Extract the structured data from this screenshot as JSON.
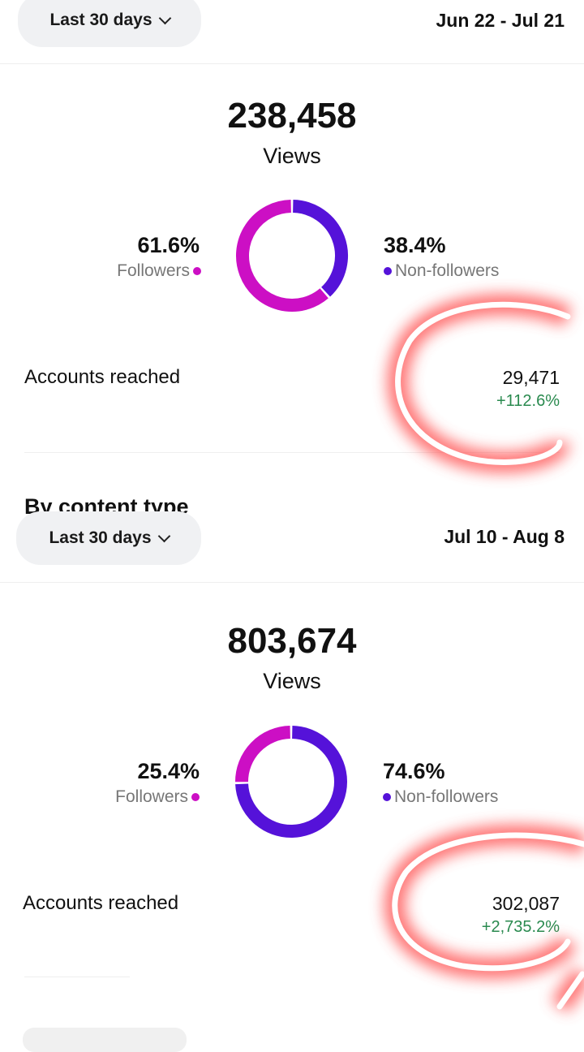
{
  "colors": {
    "followers": "#cc0fc4",
    "non_followers": "#5512d9",
    "positive": "#2a8a4f",
    "annotation": "#ff4d4d"
  },
  "section_title": "By content type",
  "panels": [
    {
      "range_label": "Last 30 days",
      "date_range": "Jun 22 - Jul 21",
      "views": "238,458",
      "views_label": "Views",
      "followers_pct": "61.6%",
      "followers_value": 61.6,
      "followers_label": "Followers",
      "non_followers_pct": "38.4%",
      "non_followers_value": 38.4,
      "non_followers_label": "Non-followers",
      "accounts_label": "Accounts reached",
      "accounts_value": "29,471",
      "accounts_change": "+112.6%"
    },
    {
      "range_label": "Last 30 days",
      "date_range": "Jul 10 - Aug 8",
      "views": "803,674",
      "views_label": "Views",
      "followers_pct": "25.4%",
      "followers_value": 25.4,
      "followers_label": "Followers",
      "non_followers_pct": "74.6%",
      "non_followers_value": 74.6,
      "non_followers_label": "Non-followers",
      "accounts_label": "Accounts reached",
      "accounts_value": "302,087",
      "accounts_change": "+2,735.2%"
    }
  ]
}
